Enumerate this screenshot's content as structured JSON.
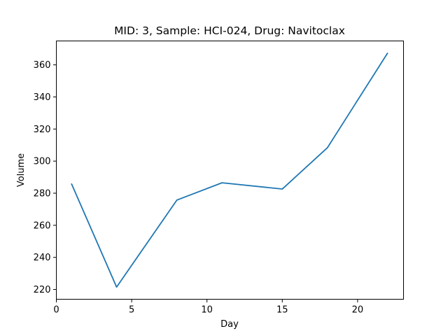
{
  "chart_data": {
    "type": "line",
    "title": "MID: 3, Sample: HCI-024, Drug: Navitoclax",
    "xlabel": "Day",
    "ylabel": "Volume",
    "xlim": [
      0,
      23.05
    ],
    "ylim": [
      213.9,
      374.9
    ],
    "xticks": [
      0,
      5,
      10,
      15,
      20
    ],
    "yticks": [
      220,
      240,
      260,
      280,
      300,
      320,
      340,
      360
    ],
    "grid": false,
    "series": [
      {
        "color": "#1f77b4",
        "x": [
          1,
          4,
          8,
          11,
          15,
          18,
          22
        ],
        "y": [
          286,
          221.5,
          275.7,
          286.5,
          282.6,
          308.4,
          367.5
        ]
      }
    ]
  }
}
